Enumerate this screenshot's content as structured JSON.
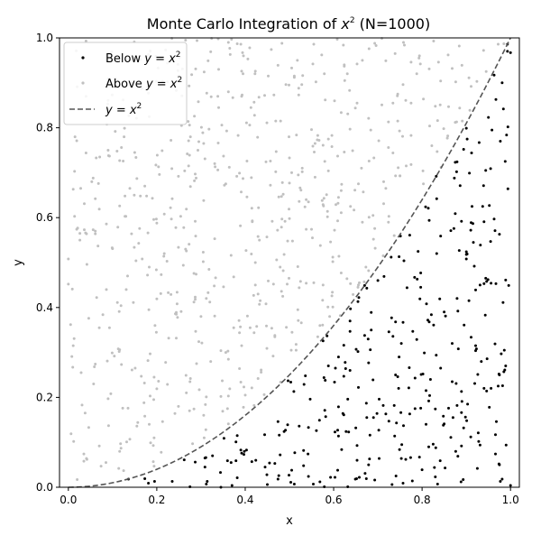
{
  "chart_data": {
    "type": "scatter",
    "title": "Monte Carlo Integration of x²",
    "title_prefix": "Monte Carlo Integration of ",
    "title_var": "x",
    "title_exp": "2",
    "title_suffix": " (N=1000)",
    "xlabel": "x",
    "ylabel": "y",
    "xlim": [
      -0.02,
      1.02
    ],
    "ylim": [
      0.0,
      1.0
    ],
    "xticks": [
      "0.0",
      "0.2",
      "0.4",
      "0.6",
      "0.8",
      "1.0"
    ],
    "yticks": [
      "0.0",
      "0.2",
      "0.4",
      "0.6",
      "0.8",
      "1.0"
    ],
    "grid": false,
    "legend_position": "top-left",
    "colors": {
      "below": "#000000",
      "above": "#c0c0c0",
      "curve": "#555555"
    },
    "series": [
      {
        "name": "Below y = x²",
        "name_prefix": "Below ",
        "name_var": "y = x",
        "name_exp": "2",
        "kind": "scatter",
        "sample": true,
        "points": []
      },
      {
        "name": "Above y = x²",
        "name_prefix": "Above ",
        "name_var": "y = x",
        "name_exp": "2",
        "kind": "scatter",
        "sample": true,
        "points": []
      },
      {
        "name": "y = x²",
        "name_prefix": "",
        "name_var": "y = x",
        "name_exp": "2",
        "kind": "line",
        "style": "dashed",
        "function": "x^2"
      }
    ],
    "n_points": 1000
  }
}
